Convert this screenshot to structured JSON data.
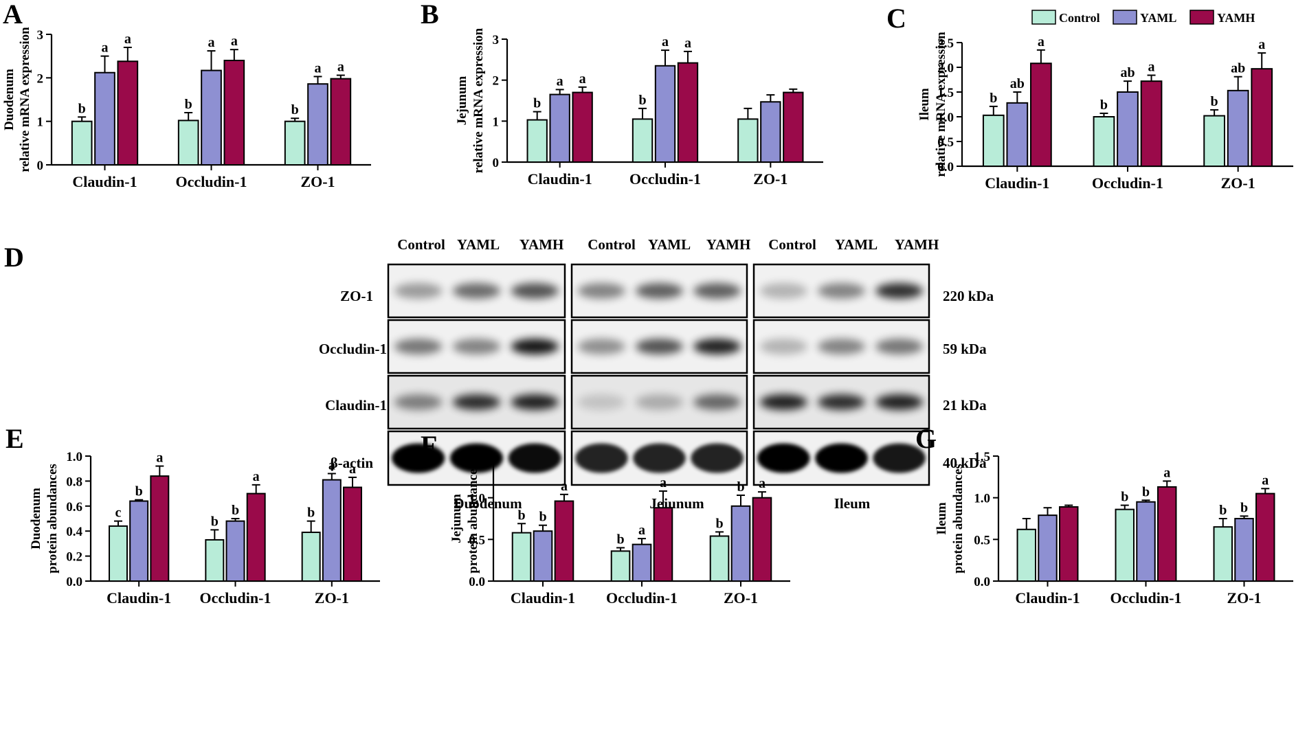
{
  "colors": {
    "Control": "#b8ecd8",
    "YAML": "#8e90d2",
    "YAMH": "#9a0a4a"
  },
  "legend": [
    {
      "name": "Control",
      "color": "#b8ecd8"
    },
    {
      "name": "YAML",
      "color": "#8e90d2"
    },
    {
      "name": "YAMH",
      "color": "#9a0a4a"
    }
  ],
  "chart_data": [
    {
      "panel": "A",
      "type": "bar",
      "ylabel_top": "Duodenum",
      "ylabel_bottom": "relative mRNA expression",
      "ylim": [
        0,
        3
      ],
      "yticks": [
        "0",
        "1",
        "2",
        "3"
      ],
      "categories": [
        "Claudin-1",
        "Occludin-1",
        "ZO-1"
      ],
      "series": [
        {
          "name": "Control",
          "values": [
            1.0,
            1.02,
            1.0
          ],
          "errors": [
            0.1,
            0.18,
            0.07
          ],
          "letters": [
            "b",
            "b",
            "b"
          ]
        },
        {
          "name": "YAML",
          "values": [
            2.12,
            2.17,
            1.86
          ],
          "errors": [
            0.38,
            0.45,
            0.17
          ],
          "letters": [
            "a",
            "a",
            "a"
          ]
        },
        {
          "name": "YAMH",
          "values": [
            2.38,
            2.4,
            1.98
          ],
          "errors": [
            0.32,
            0.25,
            0.08
          ],
          "letters": [
            "a",
            "a",
            "a"
          ]
        }
      ]
    },
    {
      "panel": "B",
      "type": "bar",
      "ylabel_top": "Jejunum",
      "ylabel_bottom": "relative mRNA expression",
      "ylim": [
        0,
        3
      ],
      "yticks": [
        "0",
        "1",
        "2",
        "3"
      ],
      "categories": [
        "Claudin-1",
        "Occludin-1",
        "ZO-1"
      ],
      "series": [
        {
          "name": "Control",
          "values": [
            1.03,
            1.05,
            1.05
          ],
          "errors": [
            0.2,
            0.26,
            0.26
          ],
          "letters": [
            "b",
            "b",
            ""
          ]
        },
        {
          "name": "YAML",
          "values": [
            1.65,
            2.35,
            1.47
          ],
          "errors": [
            0.12,
            0.38,
            0.17
          ],
          "letters": [
            "a",
            "a",
            ""
          ]
        },
        {
          "name": "YAMH",
          "values": [
            1.7,
            2.42,
            1.7
          ],
          "errors": [
            0.13,
            0.28,
            0.08
          ],
          "letters": [
            "a",
            "a",
            ""
          ]
        }
      ]
    },
    {
      "panel": "C",
      "type": "bar",
      "ylabel_top": "Ileum",
      "ylabel_bottom": "relative mRNA expression",
      "ylim": [
        0,
        2.5
      ],
      "yticks": [
        "0.0",
        "0.5",
        "1.0",
        "1.5",
        "2.0",
        "2.5"
      ],
      "categories": [
        "Claudin-1",
        "Occludin-1",
        "ZO-1"
      ],
      "series": [
        {
          "name": "Control",
          "values": [
            1.03,
            1.0,
            1.02
          ],
          "errors": [
            0.18,
            0.07,
            0.12
          ],
          "letters": [
            "b",
            "b",
            "b"
          ]
        },
        {
          "name": "YAML",
          "values": [
            1.28,
            1.5,
            1.53
          ],
          "errors": [
            0.22,
            0.22,
            0.28
          ],
          "letters": [
            "ab",
            "ab",
            "ab"
          ]
        },
        {
          "name": "YAMH",
          "values": [
            2.08,
            1.72,
            1.97
          ],
          "errors": [
            0.27,
            0.12,
            0.32
          ],
          "letters": [
            "a",
            "a",
            "a"
          ]
        }
      ]
    },
    {
      "panel": "E",
      "type": "bar",
      "ylabel_top": "Duodenum",
      "ylabel_bottom": "protein abundances",
      "ylim": [
        0,
        1.0
      ],
      "yticks": [
        "0.0",
        "0.2",
        "0.4",
        "0.6",
        "0.8",
        "1.0"
      ],
      "categories": [
        "Claudin-1",
        "Occludin-1",
        "ZO-1"
      ],
      "series": [
        {
          "name": "Control",
          "values": [
            0.44,
            0.33,
            0.39
          ],
          "errors": [
            0.04,
            0.08,
            0.09
          ],
          "letters": [
            "c",
            "b",
            "b"
          ]
        },
        {
          "name": "YAML",
          "values": [
            0.64,
            0.48,
            0.81
          ],
          "errors": [
            0.01,
            0.02,
            0.05
          ],
          "letters": [
            "b",
            "b",
            "a"
          ]
        },
        {
          "name": "YAMH",
          "values": [
            0.84,
            0.7,
            0.75
          ],
          "errors": [
            0.08,
            0.07,
            0.08
          ],
          "letters": [
            "a",
            "a",
            "a"
          ]
        }
      ]
    },
    {
      "panel": "F",
      "type": "bar",
      "ylabel_top": "Jejunum",
      "ylabel_bottom": "protein abundances",
      "ylim": [
        0,
        1.5
      ],
      "yticks": [
        "0.0",
        "0.5",
        "1.0",
        "1.5"
      ],
      "categories": [
        "Claudin-1",
        "Occludin-1",
        "ZO-1"
      ],
      "series": [
        {
          "name": "Control",
          "values": [
            0.58,
            0.36,
            0.54
          ],
          "errors": [
            0.11,
            0.04,
            0.05
          ],
          "letters": [
            "b",
            "b",
            "b"
          ]
        },
        {
          "name": "YAML",
          "values": [
            0.6,
            0.44,
            0.9
          ],
          "errors": [
            0.07,
            0.07,
            0.13
          ],
          "letters": [
            "b",
            "a",
            "b"
          ]
        },
        {
          "name": "YAMH",
          "values": [
            0.96,
            0.88,
            1.0
          ],
          "errors": [
            0.08,
            0.2,
            0.07
          ],
          "letters": [
            "a",
            "a",
            "a"
          ]
        }
      ]
    },
    {
      "panel": "G",
      "type": "bar",
      "ylabel_top": "Ileum",
      "ylabel_bottom": "protein abundances",
      "ylim": [
        0,
        1.5
      ],
      "yticks": [
        "0.0",
        "0.5",
        "1.0",
        "1.5"
      ],
      "categories": [
        "Claudin-1",
        "Occludin-1",
        "ZO-1"
      ],
      "series": [
        {
          "name": "Control",
          "values": [
            0.62,
            0.86,
            0.65
          ],
          "errors": [
            0.13,
            0.05,
            0.1
          ],
          "letters": [
            "",
            "b",
            "b"
          ]
        },
        {
          "name": "YAML",
          "values": [
            0.79,
            0.95,
            0.75
          ],
          "errors": [
            0.09,
            0.02,
            0.03
          ],
          "letters": [
            "",
            "b",
            "b"
          ]
        },
        {
          "name": "YAMH",
          "values": [
            0.89,
            1.13,
            1.05
          ],
          "errors": [
            0.02,
            0.07,
            0.06
          ],
          "letters": [
            "",
            "a",
            "a"
          ]
        }
      ]
    }
  ],
  "western_blot": {
    "panel": "D",
    "lane_labels": [
      "Control",
      "YAML",
      "YAMH",
      "Control",
      "YAML",
      "YAMH",
      "Control",
      "YAML",
      "YAMH"
    ],
    "tissues": [
      "Duodenum",
      "Jejunum",
      "Ileum"
    ],
    "rows": [
      {
        "protein": "ZO-1",
        "kda": "220 kDa"
      },
      {
        "protein": "Occludin-1",
        "kda": "59 kDa"
      },
      {
        "protein": "Claudin-1",
        "kda": "21 kDa"
      },
      {
        "protein": "β-actin",
        "kda": "40 kDa"
      }
    ]
  }
}
